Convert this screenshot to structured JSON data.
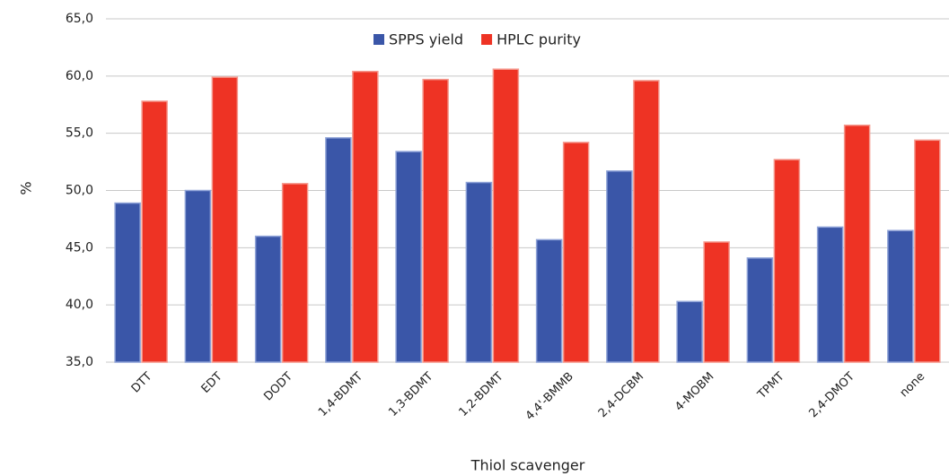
{
  "chart_data": {
    "type": "bar",
    "categories": [
      "DTT",
      "EDT",
      "DODT",
      "1,4-BDMT",
      "1,3-BDMT",
      "1,2-BDMT",
      "4,4'-BMMB",
      "2,4-DCBM",
      "4-MOBM",
      "TPMT",
      "2,4-DMOT",
      "none"
    ],
    "series": [
      {
        "name": "SPPS yield",
        "color": "#3a56a8",
        "values": [
          48.9,
          50.0,
          46.0,
          54.6,
          53.4,
          50.7,
          45.7,
          51.7,
          40.3,
          44.1,
          46.8,
          46.5
        ]
      },
      {
        "name": "HPLC purity",
        "color": "#ee3324",
        "values": [
          57.8,
          59.9,
          50.6,
          60.4,
          59.7,
          60.6,
          54.2,
          59.6,
          45.5,
          52.7,
          55.7,
          54.4
        ]
      }
    ],
    "ylabel": "%",
    "xlabel": "Thiol scavenger",
    "ylim": [
      35,
      65
    ],
    "yticks": [
      {
        "value": 35,
        "label": "35,0"
      },
      {
        "value": 40,
        "label": "40,0"
      },
      {
        "value": 45,
        "label": "45,0"
      },
      {
        "value": 50,
        "label": "50,0"
      },
      {
        "value": 55,
        "label": "55,0"
      },
      {
        "value": 60,
        "label": "60,0"
      },
      {
        "value": 65,
        "label": "65,0"
      }
    ],
    "grid": true,
    "legend": "top"
  }
}
